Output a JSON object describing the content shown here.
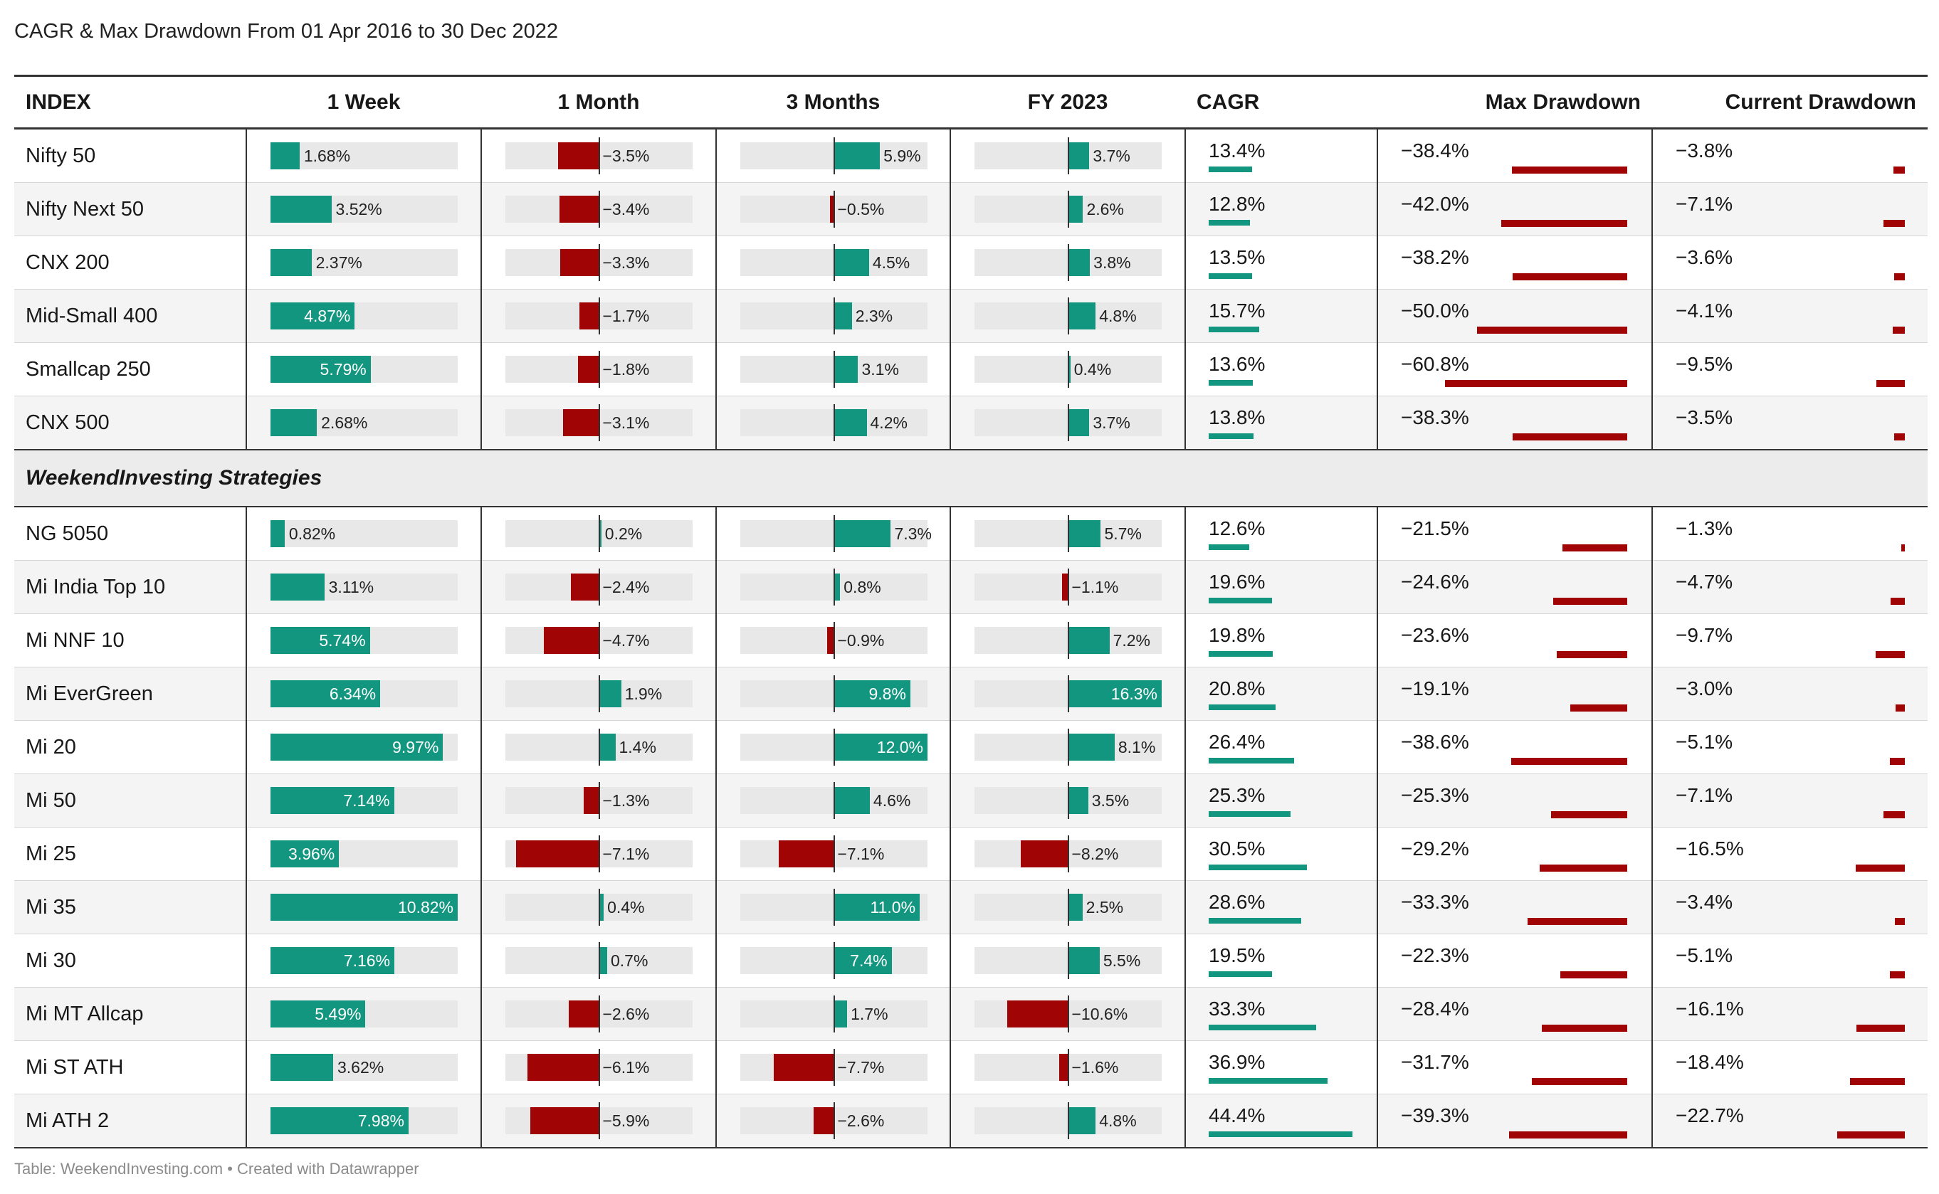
{
  "title": "CAGR & Max Drawdown From 01 Apr 2016 to 30 Dec 2022",
  "footer": "Table: WeekendInvesting.com • Created with Datawrapper",
  "colors": {
    "positive": "#12967f",
    "negative": "#a10404",
    "track": "#e8e8e8",
    "stripe": "#f4f4f4"
  },
  "columns": [
    "INDEX",
    "1 Week",
    "1 Month",
    "3 Months",
    "FY 2023",
    "CAGR",
    "Max Drawdown",
    "Current Drawdown"
  ],
  "section_label": "WeekendInvesting Strategies",
  "chart_data": {
    "type": "table",
    "scales": {
      "week": [
        0,
        10.82
      ],
      "month": [
        -8,
        8
      ],
      "months3": [
        -12,
        12
      ],
      "fy": [
        -16.3,
        16.3
      ],
      "cagr": [
        0,
        52
      ],
      "max_dd": [
        -70,
        0
      ],
      "cur_dd": [
        -25,
        0
      ]
    },
    "groups": [
      {
        "name": "",
        "rows": [
          {
            "name": "Nifty 50",
            "week": 1.68,
            "week_label": "1.68%",
            "month": -3.5,
            "month_label": "−3.5%",
            "months3": 5.9,
            "months3_label": "5.9%",
            "fy": 3.7,
            "fy_label": "3.7%",
            "cagr": 13.4,
            "cagr_label": "13.4%",
            "max_dd": -38.4,
            "max_dd_label": "−38.4%",
            "cur_dd": -3.8,
            "cur_dd_label": "−3.8%"
          },
          {
            "name": "Nifty Next 50",
            "week": 3.52,
            "week_label": "3.52%",
            "month": -3.4,
            "month_label": "−3.4%",
            "months3": -0.5,
            "months3_label": "−0.5%",
            "fy": 2.6,
            "fy_label": "2.6%",
            "cagr": 12.8,
            "cagr_label": "12.8%",
            "max_dd": -42.0,
            "max_dd_label": "−42.0%",
            "cur_dd": -7.1,
            "cur_dd_label": "−7.1%"
          },
          {
            "name": "CNX 200",
            "week": 2.37,
            "week_label": "2.37%",
            "month": -3.3,
            "month_label": "−3.3%",
            "months3": 4.5,
            "months3_label": "4.5%",
            "fy": 3.8,
            "fy_label": "3.8%",
            "cagr": 13.5,
            "cagr_label": "13.5%",
            "max_dd": -38.2,
            "max_dd_label": "−38.2%",
            "cur_dd": -3.6,
            "cur_dd_label": "−3.6%"
          },
          {
            "name": "Mid-Small 400",
            "week": 4.87,
            "week_label": "4.87%",
            "month": -1.7,
            "month_label": "−1.7%",
            "months3": 2.3,
            "months3_label": "2.3%",
            "fy": 4.8,
            "fy_label": "4.8%",
            "cagr": 15.7,
            "cagr_label": "15.7%",
            "max_dd": -50.0,
            "max_dd_label": "−50.0%",
            "cur_dd": -4.1,
            "cur_dd_label": "−4.1%"
          },
          {
            "name": "Smallcap 250",
            "week": 5.79,
            "week_label": "5.79%",
            "month": -1.8,
            "month_label": "−1.8%",
            "months3": 3.1,
            "months3_label": "3.1%",
            "fy": 0.4,
            "fy_label": "0.4%",
            "cagr": 13.6,
            "cagr_label": "13.6%",
            "max_dd": -60.8,
            "max_dd_label": "−60.8%",
            "cur_dd": -9.5,
            "cur_dd_label": "−9.5%"
          },
          {
            "name": "CNX 500",
            "week": 2.68,
            "week_label": "2.68%",
            "month": -3.1,
            "month_label": "−3.1%",
            "months3": 4.2,
            "months3_label": "4.2%",
            "fy": 3.7,
            "fy_label": "3.7%",
            "cagr": 13.8,
            "cagr_label": "13.8%",
            "max_dd": -38.3,
            "max_dd_label": "−38.3%",
            "cur_dd": -3.5,
            "cur_dd_label": "−3.5%"
          }
        ]
      },
      {
        "name": "WeekendInvesting Strategies",
        "rows": [
          {
            "name": "NG 5050",
            "week": 0.82,
            "week_label": "0.82%",
            "month": 0.2,
            "month_label": "0.2%",
            "months3": 7.3,
            "months3_label": "7.3%",
            "fy": 5.7,
            "fy_label": "5.7%",
            "cagr": 12.6,
            "cagr_label": "12.6%",
            "max_dd": -21.5,
            "max_dd_label": "−21.5%",
            "cur_dd": -1.3,
            "cur_dd_label": "−1.3%"
          },
          {
            "name": "Mi India Top 10",
            "week": 3.11,
            "week_label": "3.11%",
            "month": -2.4,
            "month_label": "−2.4%",
            "months3": 0.8,
            "months3_label": "0.8%",
            "fy": -1.1,
            "fy_label": "−1.1%",
            "cagr": 19.6,
            "cagr_label": "19.6%",
            "max_dd": -24.6,
            "max_dd_label": "−24.6%",
            "cur_dd": -4.7,
            "cur_dd_label": "−4.7%"
          },
          {
            "name": "Mi NNF 10",
            "week": 5.74,
            "week_label": "5.74%",
            "month": -4.7,
            "month_label": "−4.7%",
            "months3": -0.9,
            "months3_label": "−0.9%",
            "fy": 7.2,
            "fy_label": "7.2%",
            "cagr": 19.8,
            "cagr_label": "19.8%",
            "max_dd": -23.6,
            "max_dd_label": "−23.6%",
            "cur_dd": -9.7,
            "cur_dd_label": "−9.7%"
          },
          {
            "name": "Mi EverGreen",
            "week": 6.34,
            "week_label": "6.34%",
            "month": 1.9,
            "month_label": "1.9%",
            "months3": 9.8,
            "months3_label": "9.8%",
            "fy": 16.3,
            "fy_label": "16.3%",
            "cagr": 20.8,
            "cagr_label": "20.8%",
            "max_dd": -19.1,
            "max_dd_label": "−19.1%",
            "cur_dd": -3.0,
            "cur_dd_label": "−3.0%"
          },
          {
            "name": "Mi 20",
            "week": 9.97,
            "week_label": "9.97%",
            "month": 1.4,
            "month_label": "1.4%",
            "months3": 12.0,
            "months3_label": "12.0%",
            "fy": 8.1,
            "fy_label": "8.1%",
            "cagr": 26.4,
            "cagr_label": "26.4%",
            "max_dd": -38.6,
            "max_dd_label": "−38.6%",
            "cur_dd": -5.1,
            "cur_dd_label": "−5.1%"
          },
          {
            "name": "Mi 50",
            "week": 7.14,
            "week_label": "7.14%",
            "month": -1.3,
            "month_label": "−1.3%",
            "months3": 4.6,
            "months3_label": "4.6%",
            "fy": 3.5,
            "fy_label": "3.5%",
            "cagr": 25.3,
            "cagr_label": "25.3%",
            "max_dd": -25.3,
            "max_dd_label": "−25.3%",
            "cur_dd": -7.1,
            "cur_dd_label": "−7.1%"
          },
          {
            "name": "Mi 25",
            "week": 3.96,
            "week_label": "3.96%",
            "month": -7.1,
            "month_label": "−7.1%",
            "months3": -7.1,
            "months3_label": "−7.1%",
            "fy": -8.2,
            "fy_label": "−8.2%",
            "cagr": 30.5,
            "cagr_label": "30.5%",
            "max_dd": -29.2,
            "max_dd_label": "−29.2%",
            "cur_dd": -16.5,
            "cur_dd_label": "−16.5%"
          },
          {
            "name": "Mi 35",
            "week": 10.82,
            "week_label": "10.82%",
            "month": 0.4,
            "month_label": "0.4%",
            "months3": 11.0,
            "months3_label": "11.0%",
            "fy": 2.5,
            "fy_label": "2.5%",
            "cagr": 28.6,
            "cagr_label": "28.6%",
            "max_dd": -33.3,
            "max_dd_label": "−33.3%",
            "cur_dd": -3.4,
            "cur_dd_label": "−3.4%"
          },
          {
            "name": "Mi 30",
            "week": 7.16,
            "week_label": "7.16%",
            "month": 0.7,
            "month_label": "0.7%",
            "months3": 7.4,
            "months3_label": "7.4%",
            "fy": 5.5,
            "fy_label": "5.5%",
            "cagr": 19.5,
            "cagr_label": "19.5%",
            "max_dd": -22.3,
            "max_dd_label": "−22.3%",
            "cur_dd": -5.1,
            "cur_dd_label": "−5.1%"
          },
          {
            "name": "Mi MT Allcap",
            "week": 5.49,
            "week_label": "5.49%",
            "month": -2.6,
            "month_label": "−2.6%",
            "months3": 1.7,
            "months3_label": "1.7%",
            "fy": -10.6,
            "fy_label": "−10.6%",
            "cagr": 33.3,
            "cagr_label": "33.3%",
            "max_dd": -28.4,
            "max_dd_label": "−28.4%",
            "cur_dd": -16.1,
            "cur_dd_label": "−16.1%"
          },
          {
            "name": "Mi ST ATH",
            "week": 3.62,
            "week_label": "3.62%",
            "month": -6.1,
            "month_label": "−6.1%",
            "months3": -7.7,
            "months3_label": "−7.7%",
            "fy": -1.6,
            "fy_label": "−1.6%",
            "cagr": 36.9,
            "cagr_label": "36.9%",
            "max_dd": -31.7,
            "max_dd_label": "−31.7%",
            "cur_dd": -18.4,
            "cur_dd_label": "−18.4%"
          },
          {
            "name": "Mi ATH 2",
            "week": 7.98,
            "week_label": "7.98%",
            "month": -5.9,
            "month_label": "−5.9%",
            "months3": -2.6,
            "months3_label": "−2.6%",
            "fy": 4.8,
            "fy_label": "4.8%",
            "cagr": 44.4,
            "cagr_label": "44.4%",
            "max_dd": -39.3,
            "max_dd_label": "−39.3%",
            "cur_dd": -22.7,
            "cur_dd_label": "−22.7%"
          }
        ]
      }
    ]
  }
}
